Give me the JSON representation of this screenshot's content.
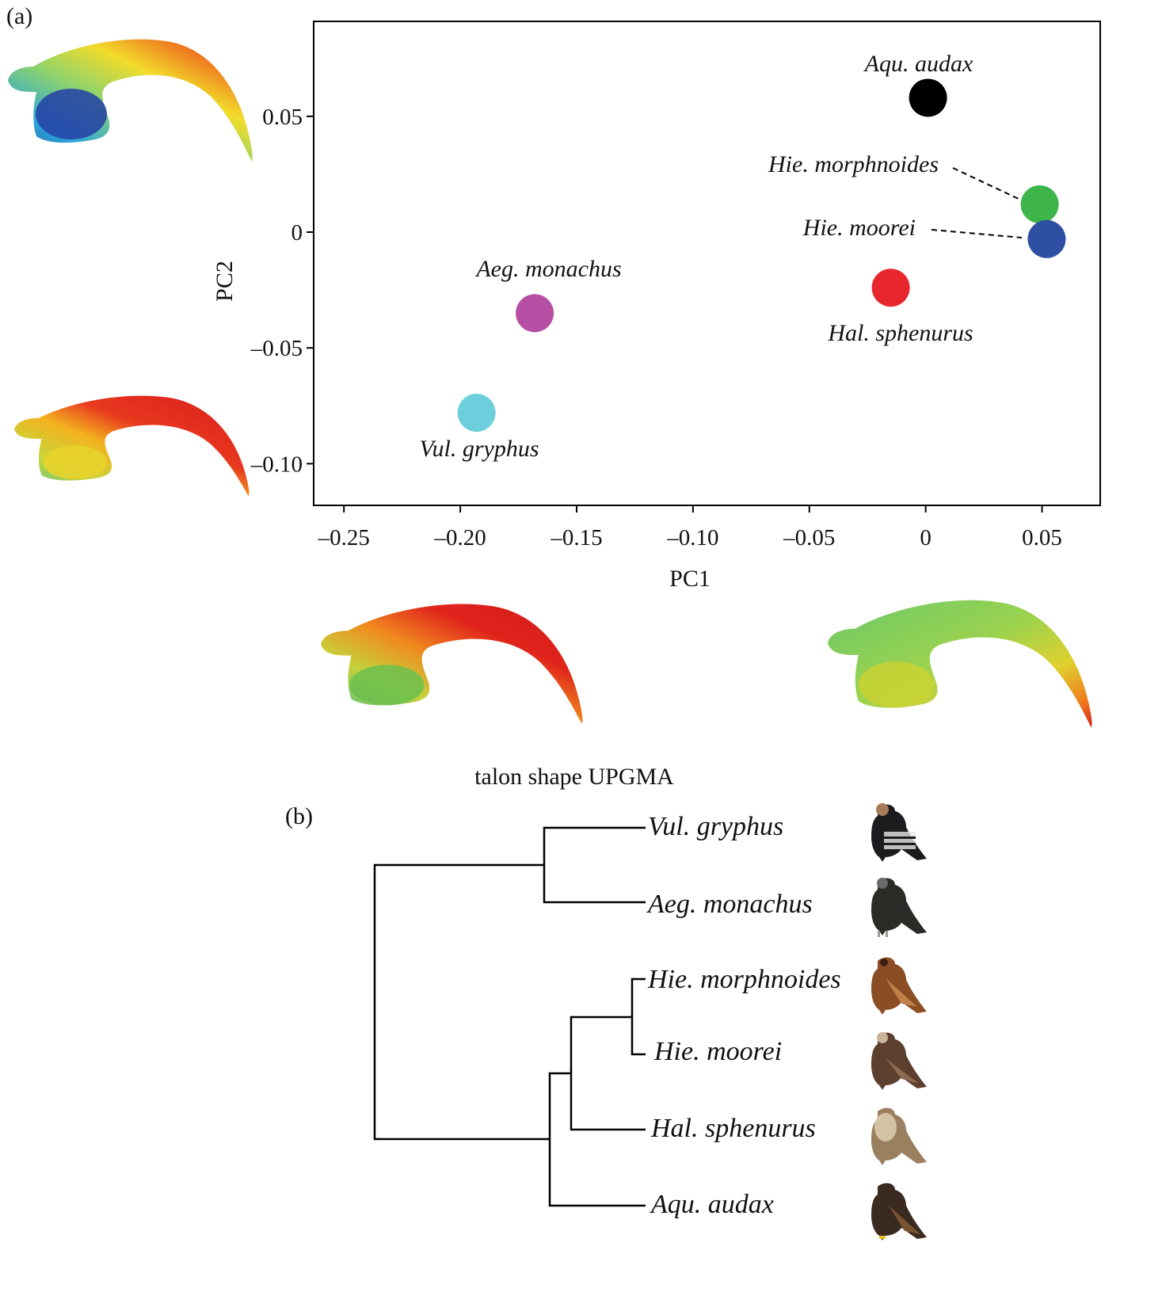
{
  "panel_a_label": "(a)",
  "panel_b_label": "(b)",
  "chart_data": [
    {
      "type": "scatter",
      "xlabel": "PC1",
      "ylabel": "PC2",
      "xlim": [
        -0.263,
        0.075
      ],
      "ylim": [
        -0.118,
        0.091
      ],
      "xticks": [
        -0.25,
        -0.2,
        -0.15,
        -0.1,
        -0.05,
        0,
        0.05
      ],
      "xtick_labels": [
        "–0.25",
        "–0.20",
        "–0.15",
        "–0.10",
        "–0.05",
        "0",
        "0.05"
      ],
      "yticks": [
        0.05,
        0,
        -0.05,
        -0.1
      ],
      "ytick_labels": [
        "0.05",
        "0",
        "–0.05",
        "–0.10"
      ],
      "grid": false,
      "points": [
        {
          "label": "Aqu. audax",
          "x": 0.001,
          "y": 0.058,
          "color": "#000000"
        },
        {
          "label": "Hie. morphnoides",
          "x": 0.049,
          "y": 0.012,
          "color": "#3db54a"
        },
        {
          "label": "Hie. moorei",
          "x": 0.052,
          "y": -0.003,
          "color": "#2f4fa2"
        },
        {
          "label": "Hal. sphenurus",
          "x": -0.015,
          "y": -0.024,
          "color": "#e8262e"
        },
        {
          "label": "Aeg. monachus",
          "x": -0.168,
          "y": -0.035,
          "color": "#b64fa3"
        },
        {
          "label": "Vul. gryphus",
          "x": -0.193,
          "y": -0.078,
          "color": "#6dcfdc"
        }
      ]
    },
    {
      "type": "dendrogram",
      "title": "talon shape UPGMA",
      "leaves": [
        "Vul. gryphus",
        "Aeg. monachus",
        "Hie. morphnoides",
        "Hie. moorei",
        "Hal. sphenurus",
        "Aqu. audax"
      ]
    }
  ],
  "talon_icons": [
    "talon-shape-top-left",
    "talon-shape-middle-left",
    "talon-shape-bottom-left",
    "talon-shape-bottom-right"
  ],
  "bird_icons": [
    "condor-icon",
    "cinereous-vulture-icon",
    "little-eagle-icon",
    "haast-eagle-icon",
    "whistling-kite-icon",
    "wedge-tailed-eagle-icon"
  ]
}
